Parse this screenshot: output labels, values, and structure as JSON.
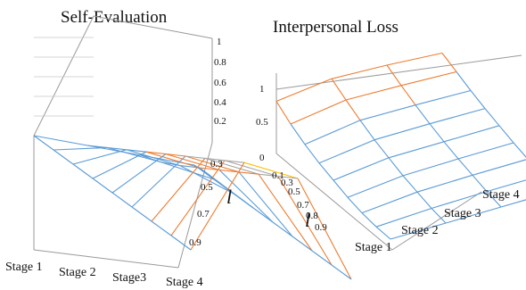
{
  "chart_data": [
    {
      "type": "surface",
      "title": "Self-Evaluation",
      "axes": {
        "x": {
          "label": "",
          "ticks": [
            "Stage 1",
            "Stage 2",
            "Stage3",
            "Stage 4"
          ]
        },
        "y": {
          "label": "l",
          "ticks": [
            "0.3",
            "0.5",
            "0.7",
            "0.9"
          ]
        },
        "z": {
          "label": "",
          "ticks": [
            "0.2",
            "0.4",
            "0.6",
            "0.8",
            "1"
          ],
          "range": [
            0,
            1
          ]
        }
      },
      "band_colors": {
        "0-0.2": "#5b9bd5",
        "0.2-0.4": "#ed7d31",
        "0.4-0.6": "#a5a5a5",
        "0.6-0.8": "#ffc000"
      },
      "stages": [
        "Stage 1",
        "Stage 2",
        "Stage3",
        "Stage 4"
      ],
      "l_values": [
        0.1,
        0.2,
        0.3,
        0.4,
        0.5,
        0.6,
        0.7,
        0.8,
        0.9
      ],
      "z_values": [
        [
          0.0,
          0.0,
          0.0,
          0.0
        ],
        [
          0.0,
          0.08,
          0.05,
          0.0
        ],
        [
          0.0,
          0.16,
          0.12,
          0.0
        ],
        [
          0.0,
          0.24,
          0.2,
          0.0
        ],
        [
          0.0,
          0.32,
          0.28,
          0.0
        ],
        [
          0.0,
          0.4,
          0.36,
          0.0
        ],
        [
          0.0,
          0.48,
          0.44,
          0.0
        ],
        [
          0.0,
          0.56,
          0.52,
          0.0
        ],
        [
          0.0,
          0.64,
          0.6,
          0.0
        ]
      ]
    },
    {
      "type": "surface",
      "title": "Interpersonal Loss",
      "axes": {
        "x": {
          "label": "",
          "ticks": [
            "Stage 1",
            "Stage 2",
            "Stage 3",
            "Stage 4"
          ]
        },
        "y": {
          "label": "l",
          "ticks": [
            "0.1",
            "0.3",
            "0.5",
            "0.7",
            "0.8",
            "0.9"
          ]
        },
        "z": {
          "label": "",
          "ticks": [
            "0",
            "0.5",
            "1"
          ],
          "range": [
            0,
            1
          ]
        }
      },
      "band_colors": {
        "0-0.5": "#5b9bd5",
        "0.5-1": "#ed7d31"
      },
      "stages": [
        "Stage 1",
        "Stage 2",
        "Stage 3",
        "Stage 4"
      ],
      "l_values": [
        0.1,
        0.2,
        0.3,
        0.4,
        0.5,
        0.6,
        0.7,
        0.8,
        0.9
      ],
      "z_values": [
        [
          0.65,
          0.73,
          0.7,
          0.65
        ],
        [
          0.5,
          0.6,
          0.58,
          0.55
        ],
        [
          0.38,
          0.48,
          0.47,
          0.45
        ],
        [
          0.28,
          0.37,
          0.37,
          0.36
        ],
        [
          0.2,
          0.28,
          0.28,
          0.28
        ],
        [
          0.12,
          0.19,
          0.2,
          0.2
        ],
        [
          0.06,
          0.12,
          0.13,
          0.13
        ],
        [
          0.02,
          0.05,
          0.06,
          0.06
        ],
        [
          0.0,
          0.0,
          0.0,
          0.0
        ]
      ]
    }
  ]
}
